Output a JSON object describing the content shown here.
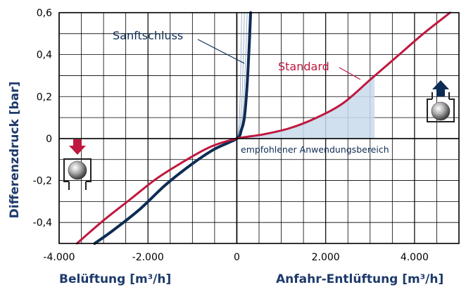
{
  "chart_data": {
    "type": "line",
    "ylabel": "Differenzdruck [bar]",
    "xlabel_left": "Belüftung [m³/h]",
    "xlabel_right": "Anfahr-Entlüftung [m³/h]",
    "xlim": [
      -4000,
      5000
    ],
    "ylim": [
      -0.5,
      0.6
    ],
    "x_ticks": [
      -4000,
      -2000,
      0,
      2000,
      4000
    ],
    "x_tick_labels": [
      "-4.000",
      "-2.000",
      "0",
      "2.000",
      "4.000"
    ],
    "y_ticks": [
      -0.4,
      -0.2,
      0,
      0.2,
      0.4,
      0.6
    ],
    "y_tick_labels": [
      "-0,4",
      "-0,2",
      "0",
      "0,2",
      "0,4",
      "0,6"
    ],
    "grid": true,
    "series": [
      {
        "name": "Standard",
        "color": "#c0173f",
        "x": [
          -3600,
          -3000,
          -2400,
          -1800,
          -1200,
          -600,
          0,
          600,
          1200,
          1800,
          2400,
          3000,
          3600,
          4200,
          4800
        ],
        "y": [
          -0.5,
          -0.39,
          -0.29,
          -0.19,
          -0.11,
          -0.04,
          0,
          0.02,
          0.05,
          0.1,
          0.17,
          0.28,
          0.39,
          0.5,
          0.6
        ]
      },
      {
        "name": "Sanftschluss",
        "color": "#0d2c54",
        "x": [
          -3200,
          -2800,
          -2200,
          -1600,
          -1000,
          -500,
          0,
          100,
          170,
          230,
          280,
          310
        ],
        "y": [
          -0.5,
          -0.44,
          -0.34,
          -0.22,
          -0.12,
          -0.05,
          0,
          0.04,
          0.1,
          0.25,
          0.45,
          0.6
        ]
      }
    ],
    "annotations": [
      {
        "text": "empfohlener Anwendungsbereich",
        "x_range": [
          0,
          3100
        ]
      }
    ],
    "icons": {
      "left": "valve-ventilation-icon",
      "right": "valve-venting-icon",
      "arrow_down_color": "#c0173f",
      "arrow_up_color": "#0d2c54"
    }
  }
}
